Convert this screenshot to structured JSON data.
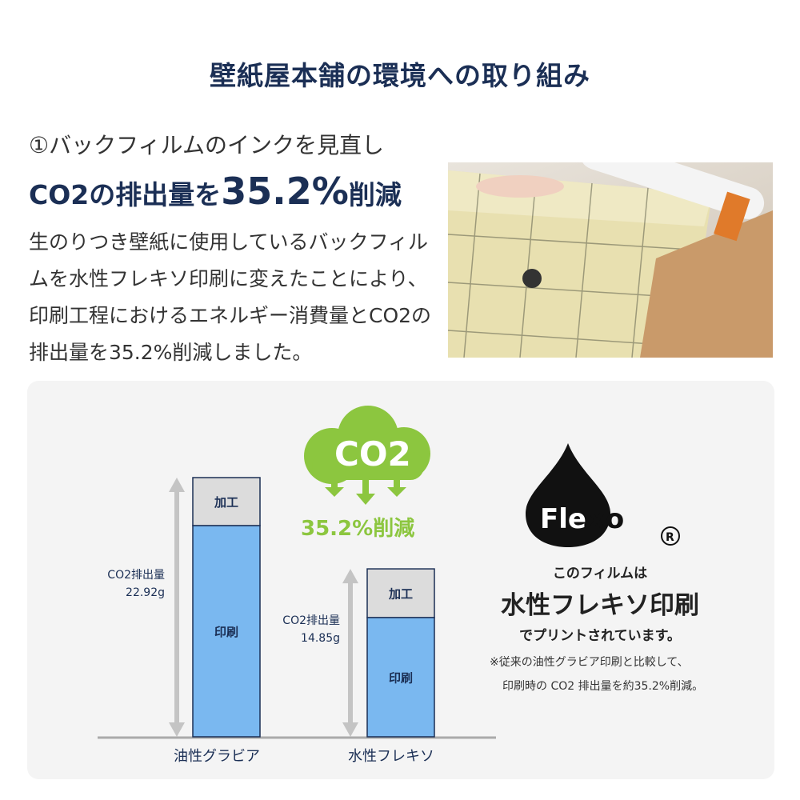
{
  "header": {
    "title": "壁紙屋本舗の環境への取り組み"
  },
  "intro": {
    "point": "①バックフィルムのインクを見直し",
    "headline_pre": "CO2の排出量を",
    "headline_value": "35.2%",
    "headline_post": "削減",
    "description": "生のりつき壁紙に使用しているバックフィルムを水性フレキソ印刷に変えたことにより、印刷工程におけるエネルギー消費量とCO2の排出量を35.2%削減しました。"
  },
  "badge": {
    "co2": "CO2",
    "reduction": "35.2%削減",
    "cloud_color": "#8cc63f"
  },
  "flexo": {
    "logo": "Flexo",
    "registered": "®",
    "line1": "このフィルムは",
    "line2": "水性フレキソ印刷",
    "line3": "でプリントされています。",
    "note1": "※従来の油性グラビア印刷と比較して、",
    "note2": "印刷時の CO2 排出量を約35.2%削減。"
  },
  "chart_data": {
    "type": "bar",
    "stacked": true,
    "categories": [
      "油性グラビア",
      "水性フレキソ"
    ],
    "series": [
      {
        "name": "印刷",
        "values": [
          18.68,
          10.55
        ],
        "color": "#7ab8f0"
      },
      {
        "name": "加工",
        "values": [
          4.24,
          4.3
        ],
        "color": "#dcdcdc"
      }
    ],
    "totals": [
      {
        "label": "CO2排出量",
        "value": "22.92g"
      },
      {
        "label": "CO2排出量",
        "value": "14.85g"
      }
    ],
    "unit": "g",
    "ylim": [
      0,
      22.92
    ],
    "grid": false
  }
}
